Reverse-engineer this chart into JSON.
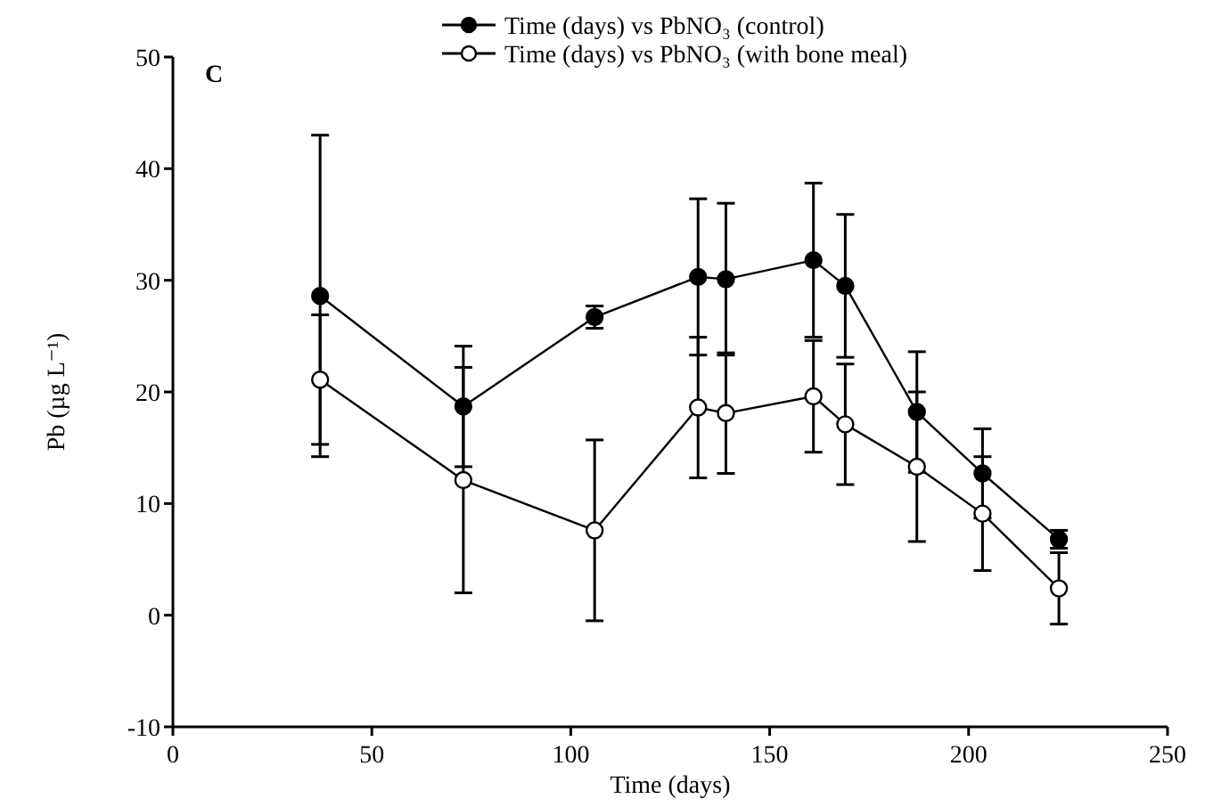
{
  "chart_data": {
    "type": "line",
    "xlabel": "Time (days)",
    "ylabel": "Pb (µg L⁻¹)",
    "annotations": [
      "C"
    ],
    "x": [
      37,
      73,
      106,
      132,
      139,
      161,
      169,
      187,
      203.5,
      222.7
    ],
    "series": [
      {
        "name": "Time (days) vs PbNO₃ (control)",
        "color": "#000000",
        "values": [
          28.6,
          18.7,
          26.7,
          30.3,
          30.1,
          31.8,
          29.5,
          18.2,
          12.7,
          6.8
        ],
        "errors": [
          14.4,
          5.4,
          1.0,
          7.0,
          6.8,
          6.9,
          6.4,
          5.4,
          4.0,
          0.8
        ]
      },
      {
        "name": "Time (days) vs PbNO₃ (with bone meal)",
        "color": "#000000",
        "values": [
          21.1,
          12.1,
          7.6,
          18.6,
          18.1,
          19.6,
          17.1,
          13.3,
          9.1,
          2.4
        ],
        "errors": [
          5.8,
          10.1,
          8.1,
          6.3,
          5.4,
          5.0,
          5.4,
          6.7,
          5.1,
          3.2
        ]
      }
    ],
    "xlim": [
      0,
      250
    ],
    "xticks": [
      0,
      50,
      100,
      150,
      200,
      250
    ],
    "ylim": [
      -10,
      50
    ],
    "yticks": [
      -10,
      0,
      10,
      20,
      30,
      40,
      50
    ],
    "grid": false,
    "legend": "top",
    "marker": "circle",
    "line_style": "solid"
  }
}
